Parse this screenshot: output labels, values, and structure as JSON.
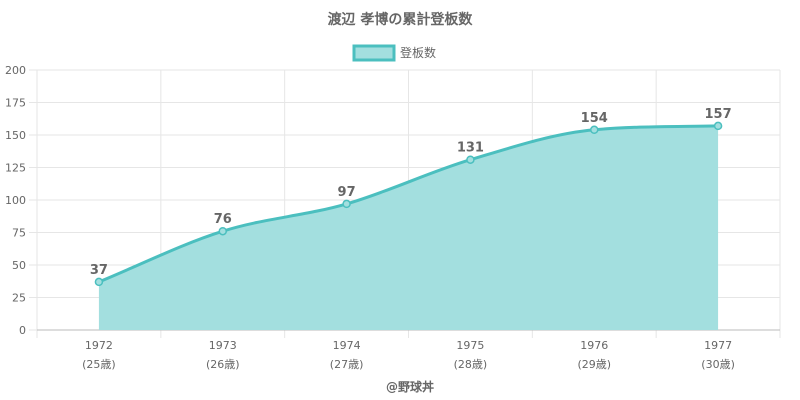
{
  "chart_data": {
    "type": "area",
    "title": "渡辺 孝博の累計登板数",
    "legend": {
      "label": "登板数",
      "position": "top-center"
    },
    "categories": [
      "1972",
      "1973",
      "1974",
      "1975",
      "1976",
      "1977"
    ],
    "category_sublabels": [
      "(25歳)",
      "(26歳)",
      "(27歳)",
      "(28歳)",
      "(29歳)",
      "(30歳)"
    ],
    "series": [
      {
        "name": "登板数",
        "values": [
          37,
          76,
          97,
          131,
          154,
          157
        ]
      }
    ],
    "ylim": [
      0,
      200
    ],
    "yticks": [
      0,
      25,
      50,
      75,
      100,
      125,
      150,
      175,
      200
    ],
    "grid": true,
    "colors": {
      "line": "#4bbfbf",
      "fill": "#a3dfdf",
      "grid": "#e6e6e6",
      "text": "#666666"
    },
    "credit": "@野球丼"
  }
}
